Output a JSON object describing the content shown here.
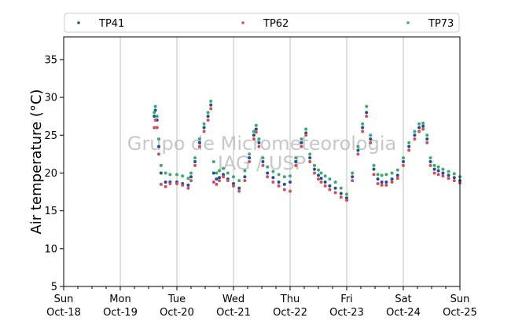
{
  "chart_data": {
    "type": "scatter",
    "ylabel": "Air temperature (°C)",
    "ylim": [
      5,
      38
    ],
    "yticks": [
      5,
      10,
      15,
      20,
      25,
      30,
      35
    ],
    "xlim": [
      "2020-10-18",
      "2020-10-25"
    ],
    "xticks": [
      {
        "day": "Sun",
        "date": "Oct-18"
      },
      {
        "day": "Mon",
        "date": "Oct-19"
      },
      {
        "day": "Tue",
        "date": "Oct-20"
      },
      {
        "day": "Wed",
        "date": "Oct-21"
      },
      {
        "day": "Thu",
        "date": "Oct-22"
      },
      {
        "day": "Fri",
        "date": "Oct-23"
      },
      {
        "day": "Sat",
        "date": "Oct-24"
      },
      {
        "day": "Sun",
        "date": "Oct-25"
      }
    ],
    "grid": "vertical",
    "legend": "top",
    "watermark": [
      "Grupo de Micrometeorologia",
      "IAG / USP"
    ],
    "series": [
      {
        "name": "TP41",
        "color": "#1f4e9a",
        "x": [
          1.6,
          1.62,
          1.65,
          1.68,
          1.72,
          1.8,
          1.88,
          2.0,
          2.1,
          2.2,
          2.25,
          2.32,
          2.4,
          2.48,
          2.55,
          2.6,
          2.65,
          2.7,
          2.75,
          2.82,
          2.9,
          3.0,
          3.1,
          3.2,
          3.28,
          3.36,
          3.4,
          3.45,
          3.52,
          3.6,
          3.7,
          3.8,
          3.9,
          4.0,
          4.1,
          4.2,
          4.28,
          4.35,
          4.43,
          4.5,
          4.55,
          4.62,
          4.7,
          4.8,
          4.9,
          5.0,
          5.1,
          5.2,
          5.28,
          5.35,
          5.42,
          5.48,
          5.55,
          5.62,
          5.7,
          5.8,
          5.9,
          6.0,
          6.1,
          6.2,
          6.28,
          6.35,
          6.42,
          6.48,
          6.55,
          6.62,
          6.7,
          6.8,
          6.9,
          7.0
        ],
        "y": [
          27.5,
          28.3,
          27.0,
          23.5,
          20.0,
          18.8,
          18.8,
          18.8,
          18.6,
          18.4,
          19.5,
          21.5,
          24.0,
          26.0,
          27.5,
          29.0,
          20.0,
          19.2,
          19.4,
          19.8,
          19.2,
          18.6,
          18.0,
          19.5,
          22.0,
          25.0,
          25.8,
          24.0,
          21.5,
          20.0,
          19.4,
          18.8,
          18.5,
          18.8,
          21.5,
          24.0,
          25.3,
          22.0,
          20.5,
          19.7,
          19.3,
          18.8,
          18.3,
          18.0,
          17.3,
          16.7,
          19.5,
          23.0,
          26.0,
          28.0,
          24.5,
          20.5,
          19.2,
          18.8,
          18.8,
          19.2,
          19.7,
          21.5,
          23.5,
          25.0,
          26.0,
          26.2,
          24.5,
          21.5,
          20.5,
          20.3,
          20.0,
          19.7,
          19.4,
          19.0
        ]
      },
      {
        "name": "TP62",
        "color": "#d1505a",
        "x": [
          1.6,
          1.62,
          1.65,
          1.68,
          1.72,
          1.8,
          1.88,
          2.0,
          2.1,
          2.2,
          2.25,
          2.32,
          2.4,
          2.48,
          2.55,
          2.6,
          2.65,
          2.7,
          2.75,
          2.82,
          2.9,
          3.0,
          3.1,
          3.2,
          3.28,
          3.36,
          3.4,
          3.45,
          3.52,
          3.6,
          3.7,
          3.8,
          3.9,
          4.0,
          4.1,
          4.2,
          4.28,
          4.35,
          4.43,
          4.5,
          4.55,
          4.62,
          4.7,
          4.8,
          4.9,
          5.0,
          5.1,
          5.2,
          5.28,
          5.35,
          5.42,
          5.48,
          5.55,
          5.62,
          5.7,
          5.8,
          5.9,
          6.0,
          6.1,
          6.2,
          6.28,
          6.35,
          6.42,
          6.48,
          6.55,
          6.62,
          6.7,
          6.8,
          6.9,
          7.0
        ],
        "y": [
          26.0,
          27.0,
          26.0,
          22.5,
          18.5,
          18.2,
          18.6,
          18.6,
          18.4,
          18.0,
          19.0,
          21.0,
          23.5,
          25.5,
          27.0,
          28.5,
          18.8,
          18.5,
          19.0,
          19.5,
          19.0,
          18.3,
          17.6,
          19.0,
          21.5,
          24.5,
          25.4,
          23.5,
          21.0,
          19.5,
          18.8,
          18.3,
          17.8,
          17.6,
          21.0,
          23.5,
          25.0,
          21.5,
          20.0,
          19.2,
          18.8,
          18.3,
          17.8,
          17.4,
          16.8,
          16.4,
          19.0,
          22.5,
          25.5,
          27.5,
          24.0,
          19.8,
          18.6,
          18.4,
          18.4,
          18.8,
          19.3,
          21.0,
          23.0,
          24.5,
          25.5,
          25.8,
          24.0,
          21.0,
          20.0,
          19.8,
          19.6,
          19.3,
          19.0,
          18.7
        ]
      },
      {
        "name": "TP73",
        "color": "#3aaa6e",
        "x": [
          1.6,
          1.62,
          1.65,
          1.68,
          1.72,
          1.8,
          1.88,
          2.0,
          2.1,
          2.2,
          2.25,
          2.32,
          2.4,
          2.48,
          2.55,
          2.6,
          2.65,
          2.7,
          2.75,
          2.82,
          2.9,
          3.0,
          3.1,
          3.2,
          3.28,
          3.36,
          3.4,
          3.45,
          3.52,
          3.6,
          3.7,
          3.8,
          3.9,
          4.0,
          4.1,
          4.2,
          4.28,
          4.35,
          4.43,
          4.5,
          4.55,
          4.62,
          4.7,
          4.8,
          4.9,
          5.0,
          5.1,
          5.2,
          5.28,
          5.35,
          5.42,
          5.48,
          5.55,
          5.62,
          5.7,
          5.8,
          5.9,
          6.0,
          6.1,
          6.2,
          6.28,
          6.35,
          6.42,
          6.48,
          6.55,
          6.62,
          6.7,
          6.8,
          6.9,
          7.0
        ],
        "y": [
          28.0,
          28.8,
          27.5,
          24.5,
          21.0,
          20.0,
          19.8,
          19.8,
          19.6,
          19.3,
          20.0,
          22.0,
          24.5,
          26.5,
          28.0,
          29.5,
          21.5,
          20.0,
          20.3,
          20.6,
          20.0,
          19.5,
          19.0,
          20.3,
          22.5,
          25.5,
          26.3,
          24.5,
          22.0,
          20.8,
          20.2,
          19.8,
          19.5,
          19.6,
          22.0,
          24.5,
          25.8,
          22.5,
          21.0,
          20.4,
          20.0,
          19.6,
          19.2,
          18.8,
          18.0,
          17.2,
          20.0,
          23.5,
          26.5,
          28.8,
          25.0,
          21.0,
          19.8,
          19.7,
          19.8,
          20.0,
          20.4,
          22.0,
          24.0,
          25.5,
          26.5,
          26.6,
          25.0,
          22.0,
          21.0,
          20.8,
          20.5,
          20.2,
          19.9,
          19.5
        ]
      }
    ]
  }
}
